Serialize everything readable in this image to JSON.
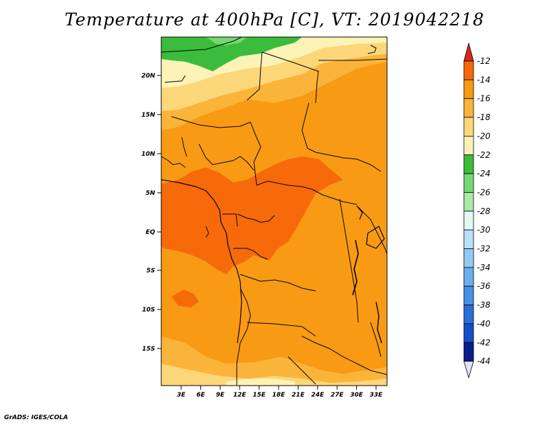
{
  "title": "Temperature at 400hPa [C], VT: 2019042218",
  "credit": "GrADS: IGES/COLA",
  "map": {
    "lat_labels": [
      "20N",
      "15N",
      "10N",
      "5N",
      "EQ",
      "5S",
      "10S",
      "15S"
    ],
    "lon_labels": [
      "3E",
      "6E",
      "9E",
      "12E",
      "15E",
      "18E",
      "21E",
      "24E",
      "27E",
      "30E",
      "33E"
    ]
  },
  "colorbar": {
    "labels": [
      "-12",
      "-14",
      "-16",
      "-18",
      "-20",
      "-22",
      "-24",
      "-26",
      "-28",
      "-30",
      "-32",
      "-34",
      "-36",
      "-38",
      "-40",
      "-42",
      "-44"
    ],
    "colors": [
      "#d62a1a",
      "#f66a0a",
      "#f99a14",
      "#fbb43a",
      "#fcd77a",
      "#fef3b6",
      "#3cbc3c",
      "#74d874",
      "#a8eaa6",
      "#e2f8f2",
      "#b8e0fa",
      "#92caf4",
      "#6aaeee",
      "#4690e8",
      "#2a70dc",
      "#1450c4",
      "#0a1e8c",
      "#e0e0f8"
    ]
  },
  "colors": {
    "deep_orange": "#f66a0a",
    "orange": "#f99a14",
    "light_orange": "#fbb43a",
    "yellow": "#fcd77a",
    "pale_yellow": "#fef3b6",
    "green": "#3cbc3c",
    "light_green": "#74d874"
  }
}
